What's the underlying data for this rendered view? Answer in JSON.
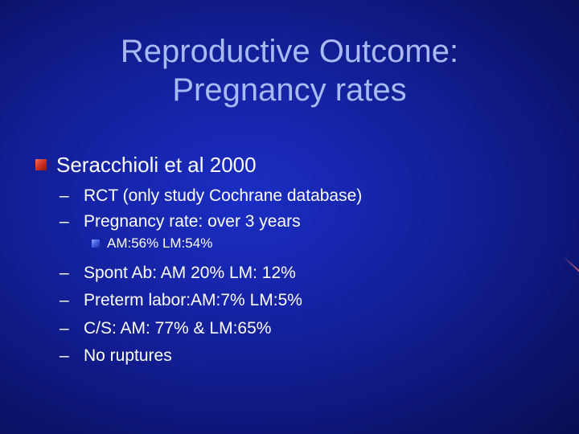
{
  "slide": {
    "title_lines": [
      "Reproductive Outcome:",
      "Pregnancy rates"
    ],
    "level1": "Seracchioli et al 2000",
    "dash_char": "–",
    "level2_before": [
      "RCT (only study Cochrane database)",
      "Pregnancy rate: over 3 years"
    ],
    "level3": "AM:56% LM:54%",
    "level2_after": [
      "Spont Ab: AM 20% LM: 12%",
      "Preterm labor:AM:7% LM:5%",
      "C/S: AM: 77% & LM:65%",
      "No ruptures"
    ]
  },
  "colors": {
    "background": "#1624a8",
    "title": "#a9b9f2",
    "body_text": "#ffffff",
    "level1_bullet": "#c42a1c",
    "level3_bullet": "#3b5bd9"
  }
}
